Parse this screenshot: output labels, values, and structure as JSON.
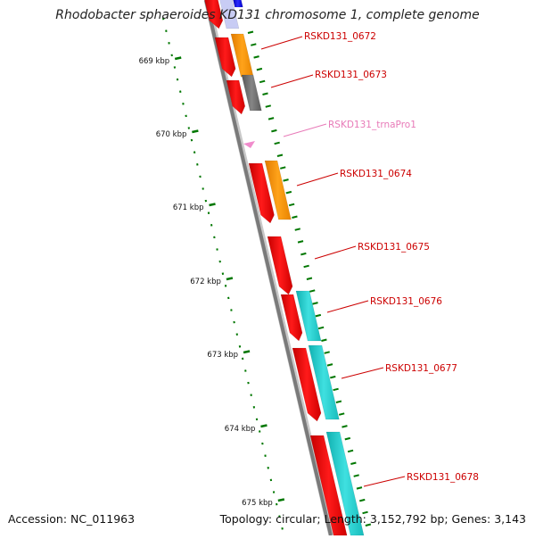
{
  "title": "Rhodobacter sphaeroides KD131 chromosome 1, complete genome",
  "footer": {
    "accession": "Accession: NC_011963",
    "summary": "Topology: circular; Length: 3,152,792 bp; Genes: 3,143"
  },
  "scale_ticks": [
    {
      "label": "669 kbp"
    },
    {
      "label": "670 kbp"
    },
    {
      "label": "671 kbp"
    },
    {
      "label": "672 kbp"
    },
    {
      "label": "673 kbp"
    },
    {
      "label": "674 kbp"
    },
    {
      "label": "675 kbp"
    }
  ],
  "gene_labels": [
    {
      "name": "RSKD131_0672",
      "color": "#cc0000"
    },
    {
      "name": "RSKD131_0673",
      "color": "#cc0000"
    },
    {
      "name": "RSKD131_trnaPro1",
      "color": "#e87ab8"
    },
    {
      "name": "RSKD131_0674",
      "color": "#cc0000"
    },
    {
      "name": "RSKD131_0675",
      "color": "#cc0000"
    },
    {
      "name": "RSKD131_0676",
      "color": "#cc0000"
    },
    {
      "name": "RSKD131_0677",
      "color": "#cc0000"
    },
    {
      "name": "RSKD131_0678",
      "color": "#cc0000"
    }
  ],
  "colors": {
    "backbone": "#808080",
    "cds": "#ee0000",
    "gc_orange": "#ff9900",
    "gc_gray": "#6f6f6f",
    "gc_cyan": "#22cccc",
    "trna": "#f08ccc",
    "tick": "#007700",
    "blue_top": "#0000dd",
    "blue_light": "#c8ccf4"
  }
}
